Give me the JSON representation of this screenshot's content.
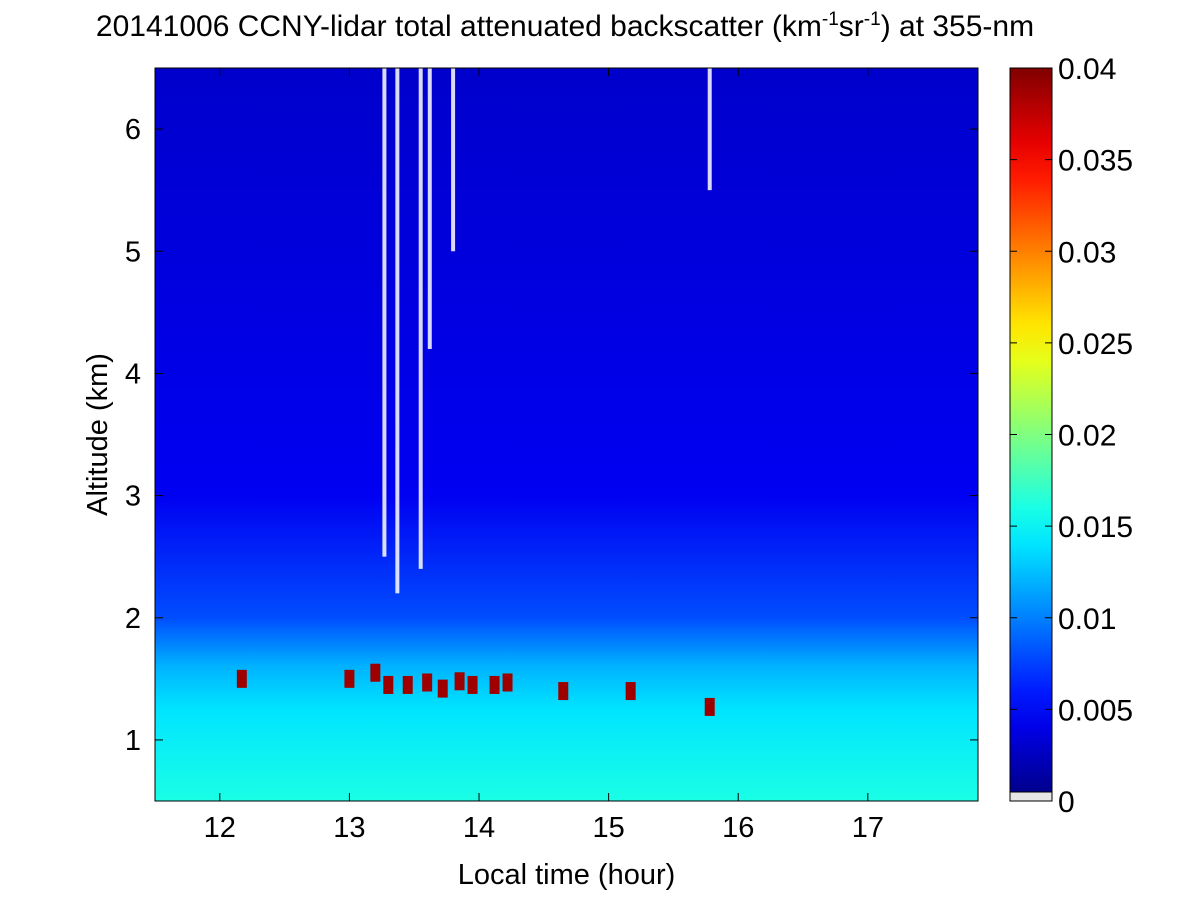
{
  "chart_data": {
    "type": "heatmap",
    "title": {
      "prefix": "20141006 CCNY-lidar total attenuated backscatter (km",
      "sup1": "-1",
      "mid": "sr",
      "sup2": "-1",
      "suffix": ") at 355-nm"
    },
    "xlabel": "Local time (hour)",
    "ylabel": "Altitude (km)",
    "xlim": [
      11.5,
      17.85
    ],
    "ylim": [
      0.5,
      6.5
    ],
    "xticks": [
      12,
      13,
      14,
      15,
      16,
      17
    ],
    "xtick_labels": [
      "12",
      "13",
      "14",
      "15",
      "16",
      "17"
    ],
    "yticks": [
      1,
      2,
      3,
      4,
      5,
      6
    ],
    "ytick_labels": [
      "1",
      "2",
      "3",
      "4",
      "5",
      "6"
    ],
    "colorbar": {
      "colormap": "jet",
      "clim": [
        0,
        0.04
      ],
      "ticks": [
        0,
        0.005,
        0.01,
        0.015,
        0.02,
        0.025,
        0.03,
        0.035,
        0.04
      ],
      "tick_labels": [
        "0",
        "0.005",
        "0.01",
        "0.015",
        "0.02",
        "0.025",
        "0.03",
        "0.035",
        "0.04"
      ]
    },
    "field": {
      "free_troposphere_value": 0.003,
      "boundary_layer_value": 0.016,
      "boundary_layer_top_km": 1.35,
      "transition_value_at_2km": 0.008
    },
    "cloud_patches": [
      {
        "time": 12.17,
        "altitude": 1.5,
        "value": 0.04
      },
      {
        "time": 13.0,
        "altitude": 1.5,
        "value": 0.04
      },
      {
        "time": 13.2,
        "altitude": 1.55,
        "value": 0.04
      },
      {
        "time": 13.3,
        "altitude": 1.45,
        "value": 0.04
      },
      {
        "time": 13.45,
        "altitude": 1.45,
        "value": 0.04
      },
      {
        "time": 13.6,
        "altitude": 1.47,
        "value": 0.04
      },
      {
        "time": 13.72,
        "altitude": 1.42,
        "value": 0.04
      },
      {
        "time": 13.85,
        "altitude": 1.48,
        "value": 0.04
      },
      {
        "time": 13.95,
        "altitude": 1.45,
        "value": 0.04
      },
      {
        "time": 14.12,
        "altitude": 1.45,
        "value": 0.04
      },
      {
        "time": 14.22,
        "altitude": 1.47,
        "value": 0.04
      },
      {
        "time": 14.65,
        "altitude": 1.4,
        "value": 0.04
      },
      {
        "time": 15.17,
        "altitude": 1.4,
        "value": 0.04
      },
      {
        "time": 15.78,
        "altitude": 1.27,
        "value": 0.04
      }
    ],
    "missing_data_columns": [
      {
        "time": 13.27,
        "altitude_from": 2.5,
        "altitude_to": 6.5
      },
      {
        "time": 13.37,
        "altitude_from": 2.2,
        "altitude_to": 6.5
      },
      {
        "time": 13.55,
        "altitude_from": 2.4,
        "altitude_to": 6.5
      },
      {
        "time": 13.62,
        "altitude_from": 4.2,
        "altitude_to": 6.5
      },
      {
        "time": 13.8,
        "altitude_from": 5.0,
        "altitude_to": 6.5
      },
      {
        "time": 15.78,
        "altitude_from": 5.5,
        "altitude_to": 6.5
      }
    ]
  }
}
